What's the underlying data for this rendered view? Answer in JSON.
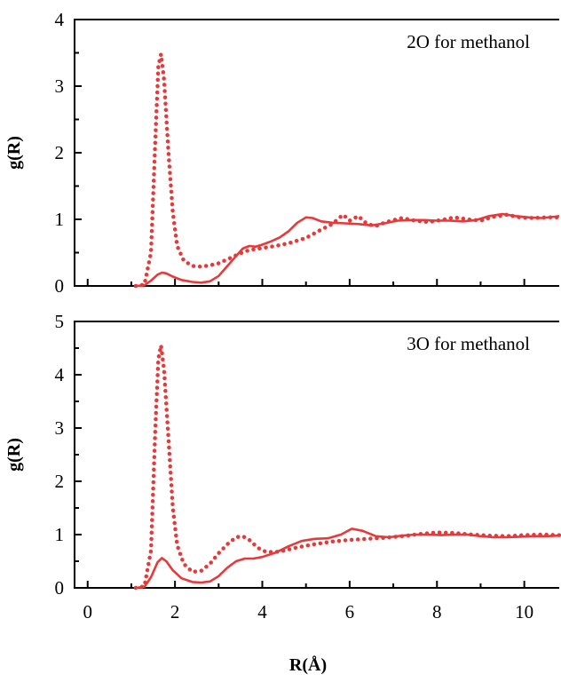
{
  "chart_data": [
    {
      "type": "line",
      "title": "2O for methanol",
      "xlabel": "",
      "ylabel": "g(R)",
      "xlim": [
        -0.3,
        10.8
      ],
      "ylim": [
        0,
        4
      ],
      "yticks": [
        "0",
        "1",
        "2",
        "3",
        "4"
      ],
      "grid": false,
      "series": [
        {
          "style": "dotted",
          "color": "#e8393a",
          "points": [
            [
              1.1,
              0.0
            ],
            [
              1.3,
              0.02
            ],
            [
              1.45,
              0.5
            ],
            [
              1.55,
              2.2
            ],
            [
              1.62,
              3.3
            ],
            [
              1.68,
              3.48
            ],
            [
              1.75,
              3.1
            ],
            [
              1.85,
              2.0
            ],
            [
              1.95,
              1.1
            ],
            [
              2.05,
              0.6
            ],
            [
              2.2,
              0.38
            ],
            [
              2.4,
              0.3
            ],
            [
              2.6,
              0.29
            ],
            [
              2.8,
              0.31
            ],
            [
              3.0,
              0.34
            ],
            [
              3.2,
              0.4
            ],
            [
              3.4,
              0.46
            ],
            [
              3.6,
              0.52
            ],
            [
              3.8,
              0.55
            ],
            [
              4.0,
              0.57
            ],
            [
              4.3,
              0.6
            ],
            [
              4.6,
              0.64
            ],
            [
              5.0,
              0.72
            ],
            [
              5.3,
              0.83
            ],
            [
              5.6,
              0.93
            ],
            [
              5.85,
              1.07
            ],
            [
              6.0,
              0.98
            ],
            [
              6.2,
              1.05
            ],
            [
              6.4,
              0.93
            ],
            [
              6.6,
              0.9
            ],
            [
              6.8,
              0.95
            ],
            [
              7.0,
              0.99
            ],
            [
              7.2,
              1.02
            ],
            [
              7.5,
              0.98
            ],
            [
              7.8,
              0.96
            ],
            [
              8.1,
              0.99
            ],
            [
              8.4,
              1.03
            ],
            [
              8.7,
              1.0
            ],
            [
              9.0,
              0.98
            ],
            [
              9.3,
              1.04
            ],
            [
              9.6,
              1.07
            ],
            [
              9.9,
              1.03
            ],
            [
              10.2,
              1.02
            ],
            [
              10.5,
              1.03
            ],
            [
              10.8,
              1.03
            ]
          ]
        },
        {
          "style": "solid",
          "color": "#e8393a",
          "points": [
            [
              1.1,
              0.0
            ],
            [
              1.3,
              0.01
            ],
            [
              1.45,
              0.08
            ],
            [
              1.6,
              0.17
            ],
            [
              1.7,
              0.2
            ],
            [
              1.8,
              0.19
            ],
            [
              1.95,
              0.14
            ],
            [
              2.15,
              0.09
            ],
            [
              2.4,
              0.06
            ],
            [
              2.6,
              0.05
            ],
            [
              2.8,
              0.07
            ],
            [
              3.0,
              0.15
            ],
            [
              3.2,
              0.3
            ],
            [
              3.4,
              0.45
            ],
            [
              3.55,
              0.56
            ],
            [
              3.7,
              0.6
            ],
            [
              3.85,
              0.59
            ],
            [
              4.0,
              0.62
            ],
            [
              4.2,
              0.67
            ],
            [
              4.4,
              0.73
            ],
            [
              4.6,
              0.82
            ],
            [
              4.8,
              0.95
            ],
            [
              5.0,
              1.03
            ],
            [
              5.15,
              1.02
            ],
            [
              5.35,
              0.97
            ],
            [
              5.6,
              0.95
            ],
            [
              5.9,
              0.94
            ],
            [
              6.2,
              0.93
            ],
            [
              6.5,
              0.91
            ],
            [
              6.8,
              0.94
            ],
            [
              7.1,
              0.98
            ],
            [
              7.4,
              0.99
            ],
            [
              7.7,
              0.99
            ],
            [
              8.0,
              0.98
            ],
            [
              8.3,
              0.98
            ],
            [
              8.6,
              0.97
            ],
            [
              8.9,
              0.99
            ],
            [
              9.2,
              1.05
            ],
            [
              9.5,
              1.08
            ],
            [
              9.8,
              1.05
            ],
            [
              10.1,
              1.03
            ],
            [
              10.4,
              1.02
            ],
            [
              10.7,
              1.04
            ],
            [
              10.8,
              1.05
            ]
          ]
        }
      ]
    },
    {
      "type": "line",
      "title": "3O for methanol",
      "xlabel": "R(Å)",
      "ylabel": "g(R)",
      "xlim": [
        -0.3,
        10.8
      ],
      "ylim": [
        0,
        5
      ],
      "yticks": [
        "0",
        "1",
        "2",
        "3",
        "4",
        "5"
      ],
      "xticks": [
        "0",
        "2",
        "4",
        "6",
        "8",
        "10"
      ],
      "grid": false,
      "series": [
        {
          "style": "dotted",
          "color": "#e8393a",
          "points": [
            [
              1.1,
              0.0
            ],
            [
              1.3,
              0.03
            ],
            [
              1.45,
              0.7
            ],
            [
              1.55,
              3.0
            ],
            [
              1.62,
              4.3
            ],
            [
              1.68,
              4.55
            ],
            [
              1.75,
              4.1
            ],
            [
              1.85,
              2.8
            ],
            [
              1.95,
              1.5
            ],
            [
              2.05,
              0.8
            ],
            [
              2.2,
              0.45
            ],
            [
              2.4,
              0.3
            ],
            [
              2.6,
              0.32
            ],
            [
              2.8,
              0.45
            ],
            [
              3.0,
              0.65
            ],
            [
              3.2,
              0.82
            ],
            [
              3.4,
              0.95
            ],
            [
              3.55,
              0.97
            ],
            [
              3.7,
              0.9
            ],
            [
              3.9,
              0.75
            ],
            [
              4.1,
              0.67
            ],
            [
              4.4,
              0.68
            ],
            [
              4.8,
              0.76
            ],
            [
              5.2,
              0.82
            ],
            [
              5.6,
              0.87
            ],
            [
              6.0,
              0.9
            ],
            [
              6.4,
              0.92
            ],
            [
              6.8,
              0.94
            ],
            [
              7.2,
              0.97
            ],
            [
              7.6,
              1.01
            ],
            [
              8.0,
              1.04
            ],
            [
              8.4,
              1.03
            ],
            [
              8.8,
              1.0
            ],
            [
              9.2,
              0.98
            ],
            [
              9.6,
              0.97
            ],
            [
              10.0,
              0.99
            ],
            [
              10.4,
              1.0
            ],
            [
              10.8,
              0.99
            ]
          ]
        },
        {
          "style": "solid",
          "color": "#e8393a",
          "points": [
            [
              1.1,
              0.0
            ],
            [
              1.3,
              0.02
            ],
            [
              1.45,
              0.2
            ],
            [
              1.6,
              0.48
            ],
            [
              1.7,
              0.56
            ],
            [
              1.8,
              0.5
            ],
            [
              1.95,
              0.33
            ],
            [
              2.15,
              0.18
            ],
            [
              2.4,
              0.11
            ],
            [
              2.6,
              0.1
            ],
            [
              2.8,
              0.12
            ],
            [
              3.0,
              0.22
            ],
            [
              3.2,
              0.38
            ],
            [
              3.4,
              0.5
            ],
            [
              3.6,
              0.55
            ],
            [
              3.8,
              0.55
            ],
            [
              4.0,
              0.58
            ],
            [
              4.3,
              0.66
            ],
            [
              4.6,
              0.78
            ],
            [
              4.9,
              0.88
            ],
            [
              5.2,
              0.92
            ],
            [
              5.5,
              0.93
            ],
            [
              5.8,
              1.0
            ],
            [
              6.05,
              1.11
            ],
            [
              6.3,
              1.07
            ],
            [
              6.6,
              0.97
            ],
            [
              6.9,
              0.95
            ],
            [
              7.2,
              0.98
            ],
            [
              7.5,
              1.0
            ],
            [
              7.8,
              1.0
            ],
            [
              8.1,
              0.99
            ],
            [
              8.4,
              1.0
            ],
            [
              8.7,
              1.0
            ],
            [
              9.0,
              0.97
            ],
            [
              9.3,
              0.95
            ],
            [
              9.6,
              0.95
            ],
            [
              9.9,
              0.96
            ],
            [
              10.2,
              0.97
            ],
            [
              10.5,
              0.97
            ],
            [
              10.8,
              0.98
            ]
          ]
        }
      ]
    }
  ]
}
